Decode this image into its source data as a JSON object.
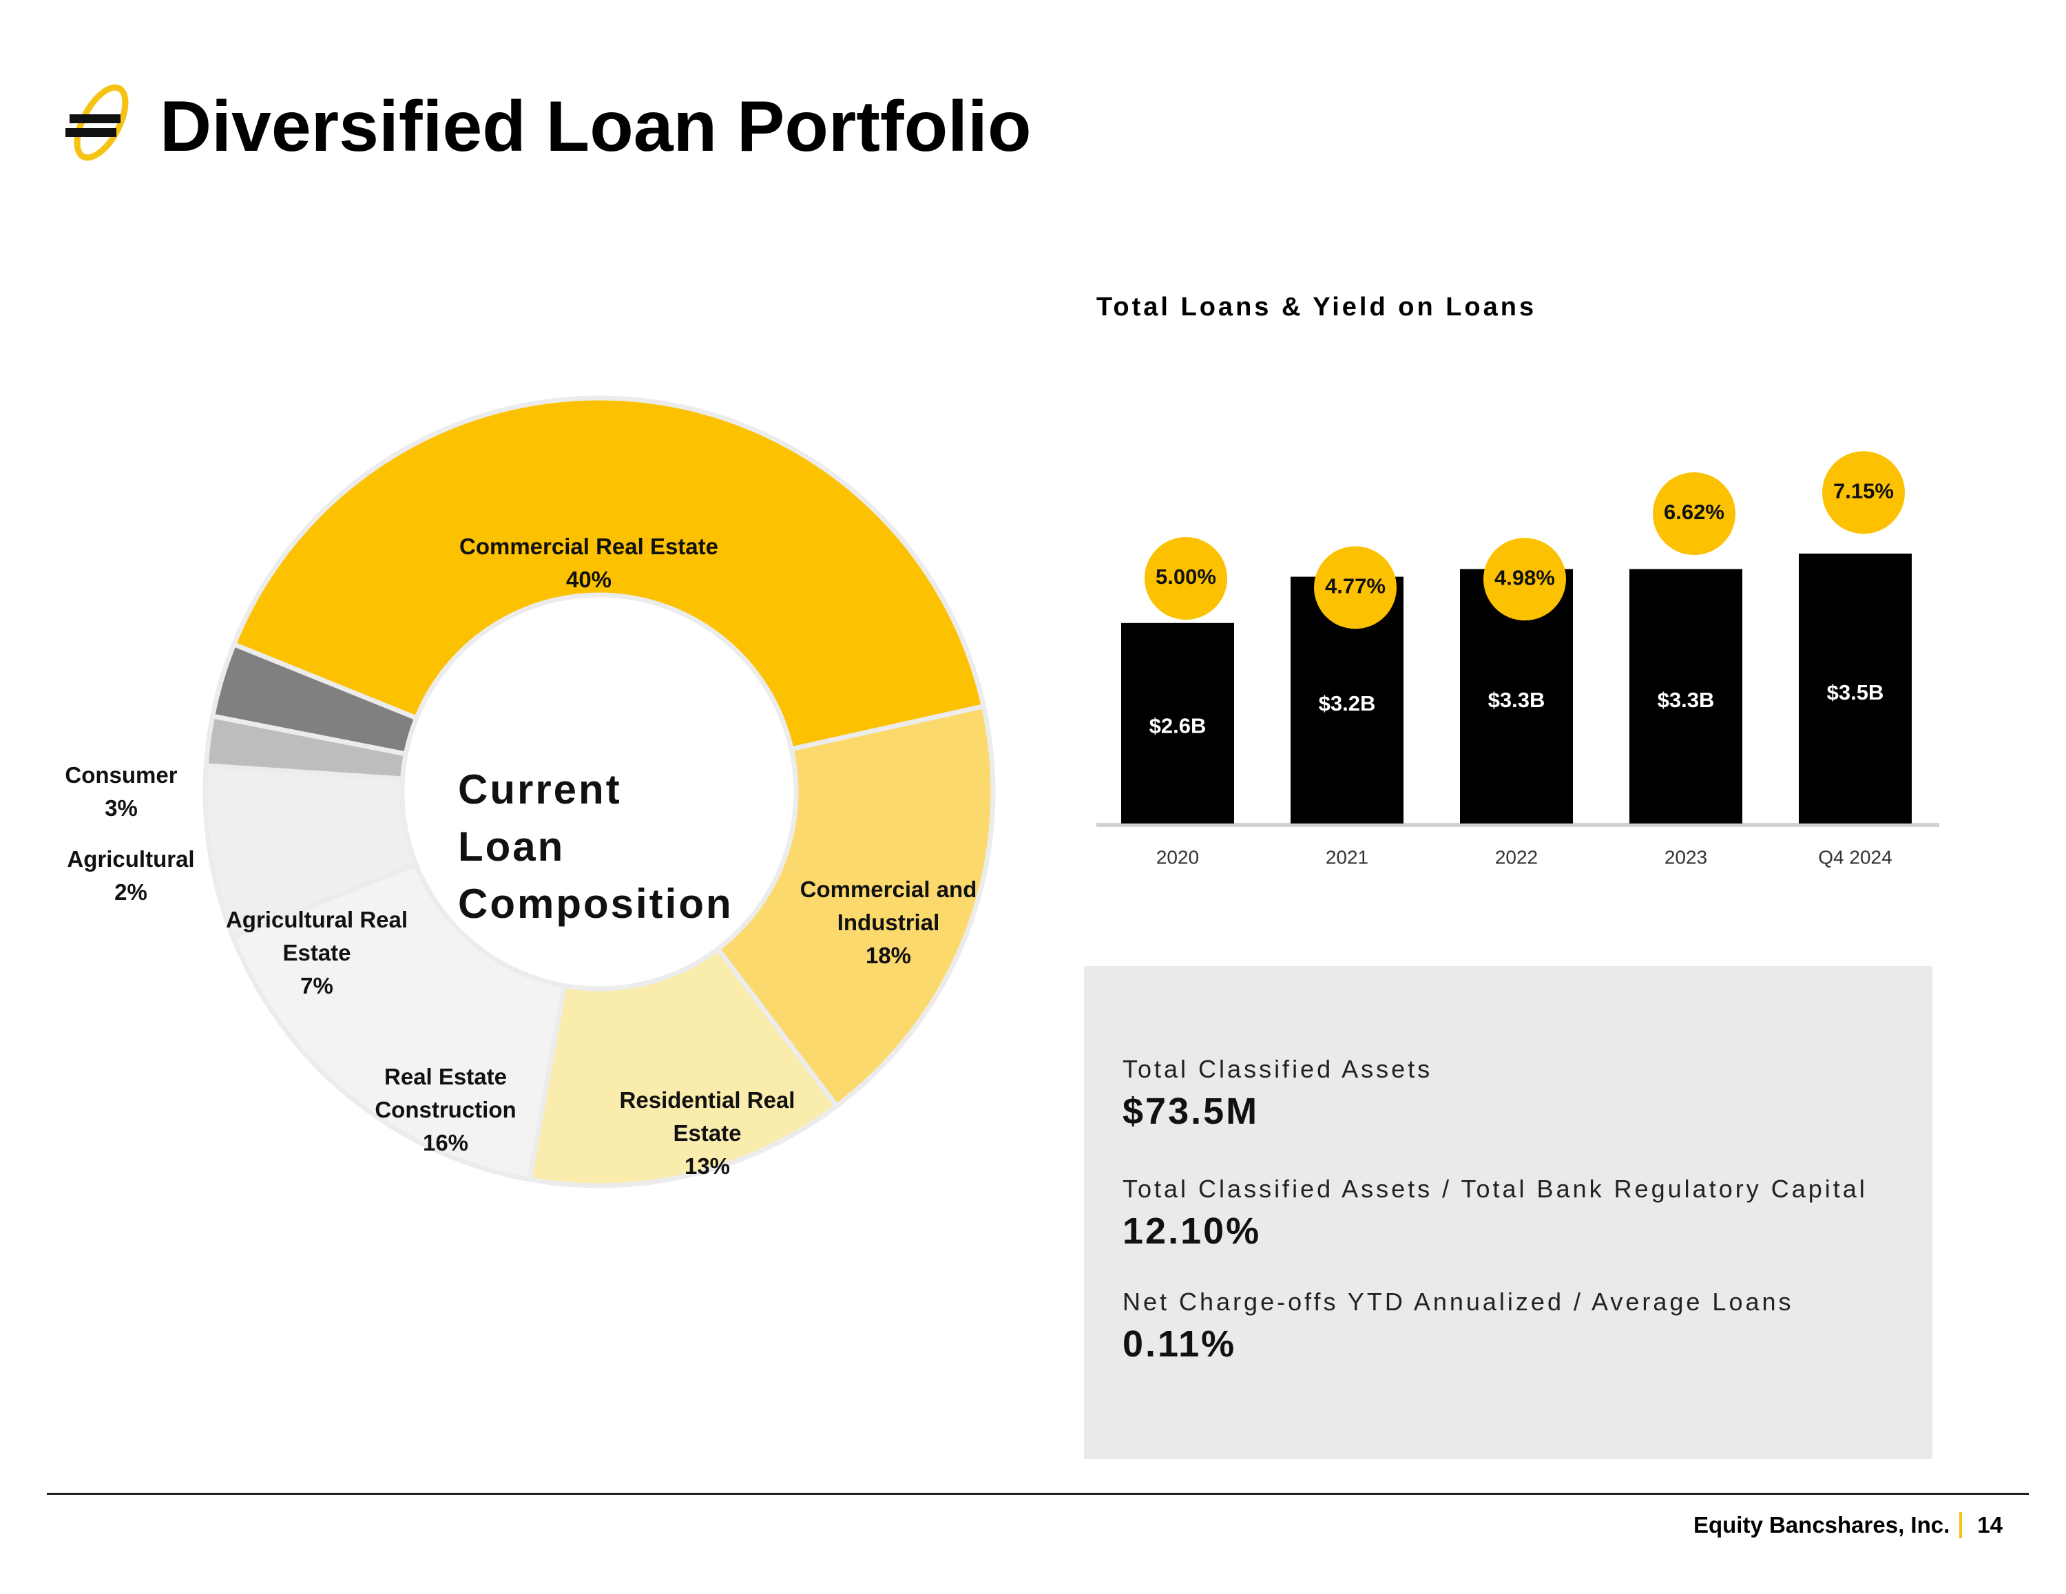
{
  "title": "Diversified Loan Portfolio",
  "colors": {
    "brand_gold": "#fcc100",
    "accent_gold": "#f6c315",
    "bar": "#000000"
  },
  "chart_data": [
    {
      "type": "pie",
      "center_label": "Current\nLoan\nComposition",
      "slices": [
        {
          "label": "Commercial Real Estate",
          "pct_label": "40%",
          "value": 40,
          "color": "#fcc100"
        },
        {
          "label": "Commercial and Industrial",
          "pct_label": "18%",
          "value": 18,
          "color": "#fcd96d"
        },
        {
          "label": "Residential Real Estate",
          "pct_label": "13%",
          "value": 13,
          "color": "#f9ecac"
        },
        {
          "label": "Real Estate Construction",
          "pct_label": "16%",
          "value": 16,
          "color": "#f3f3f3"
        },
        {
          "label": "Agricultural Real Estate",
          "pct_label": "7%",
          "value": 7,
          "color": "#efefef"
        },
        {
          "label": "Agricultural",
          "pct_label": "2%",
          "value": 2,
          "color": "#bdbdbd"
        },
        {
          "label": "Consumer",
          "pct_label": "3%",
          "value": 3,
          "color": "#808080"
        }
      ]
    },
    {
      "type": "bar",
      "title": "Total Loans & Yield on Loans",
      "categories": [
        "2020",
        "2021",
        "2022",
        "2023",
        "Q4 2024"
      ],
      "values": [
        2.6,
        3.2,
        3.3,
        3.3,
        3.5
      ],
      "value_labels": [
        "$2.6B",
        "$3.2B",
        "$3.3B",
        "$3.3B",
        "$3.5B"
      ],
      "yield_values": [
        5.0,
        4.77,
        4.98,
        6.62,
        7.15
      ],
      "yield_labels": [
        "5.00%",
        "4.77%",
        "4.98%",
        "6.62%",
        "7.15%"
      ],
      "grid": false
    }
  ],
  "metrics": [
    {
      "label": "Total Classified Assets",
      "value": "$73.5M"
    },
    {
      "label": "Total Classified Assets / Total Bank Regulatory Capital",
      "value": "12.10%"
    },
    {
      "label": "Net Charge-offs YTD Annualized / Average Loans",
      "value": "0.11%"
    }
  ],
  "footer": {
    "company": "Equity Bancshares, Inc.",
    "page": "14"
  }
}
